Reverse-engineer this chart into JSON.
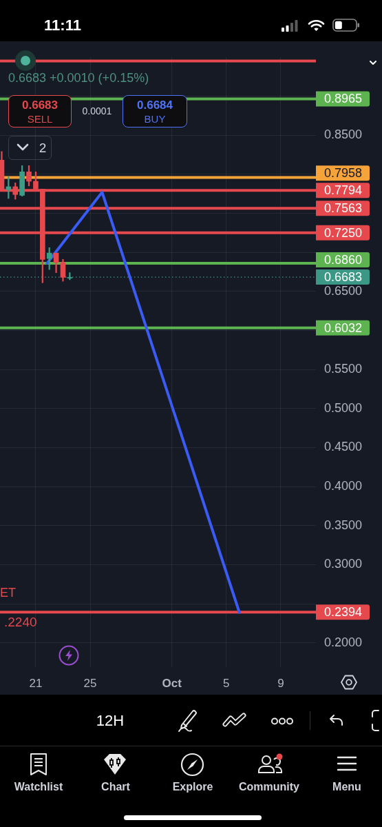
{
  "chart_data": {
    "type": "candlestick",
    "x": [
      "--09-18T12:00",
      "--09-19T00:00",
      "--09-19T12:00",
      "--09-20T00:00",
      "--09-20T12:00",
      "--09-21T00:00",
      "--09-21T12:00",
      "--09-22T00:00",
      "--09-22T12:00",
      "--09-23T00:00",
      "--09-23T12:00"
    ],
    "ohlc": [
      [
        0.818,
        0.829,
        0.779,
        0.779
      ],
      [
        0.78,
        0.797,
        0.769,
        0.784
      ],
      [
        0.784,
        0.789,
        0.768,
        0.774
      ],
      [
        0.773,
        0.811,
        0.772,
        0.803
      ],
      [
        0.803,
        0.811,
        0.785,
        0.791
      ],
      [
        0.791,
        0.803,
        0.781,
        0.781
      ],
      [
        0.781,
        0.781,
        0.661,
        0.691
      ],
      [
        0.692,
        0.706,
        0.678,
        0.699
      ],
      [
        0.699,
        0.699,
        0.674,
        0.687
      ],
      [
        0.687,
        0.691,
        0.663,
        0.668
      ],
      [
        0.667,
        0.674,
        0.665,
        0.668
      ]
    ],
    "colors": [
      "#e5484d",
      "#3c9d86",
      "#e5484d",
      "#3c9d86",
      "#e5484d",
      "#e5484d",
      "#e5484d",
      "#3c9d86",
      "#e5484d",
      "#e5484d",
      "#3c9d86"
    ],
    "series": [
      {
        "type": "line",
        "color": "#3a5cf5",
        "x": [
          "--09-21T20:00",
          "--09-25T21:00",
          "--10-05T23:00"
        ],
        "values": [
          0.686,
          0.777,
          0.239
        ]
      }
    ],
    "xlim": [
      "--09-18T09:00",
      "--10-11T14:00"
    ],
    "xticks": [
      {
        "value": "--09-21",
        "label": "21"
      },
      {
        "value": "--09-25",
        "label": "25"
      },
      {
        "value": "--10-01",
        "label": "Oct"
      },
      {
        "value": "--10-05",
        "label": "5"
      },
      {
        "value": "--10-09",
        "label": "9"
      }
    ],
    "ylim": [
      0.169,
      0.95
    ],
    "yticks": [
      {
        "value": 0.2,
        "label": "0.2000"
      },
      {
        "value": 0.25,
        "label": null
      },
      {
        "value": 0.3,
        "label": "0.3000"
      },
      {
        "value": 0.35,
        "label": "0.3500"
      },
      {
        "value": 0.4,
        "label": "0.4000"
      },
      {
        "value": 0.45,
        "label": "0.4500"
      },
      {
        "value": 0.5,
        "label": "0.5000"
      },
      {
        "value": 0.55,
        "label": "0.5500"
      },
      {
        "value": 0.6,
        "label": null
      },
      {
        "value": 0.65,
        "label": "0.6500"
      },
      {
        "value": 0.7,
        "label": null
      },
      {
        "value": 0.75,
        "label": null
      },
      {
        "value": 0.8,
        "label": null
      },
      {
        "value": 0.85,
        "label": "0.8500"
      },
      {
        "value": 0.9,
        "label": null
      }
    ],
    "ref_lines": [
      {
        "axis": "y",
        "value": 0.945,
        "color": "#e5484d"
      },
      {
        "axis": "y",
        "value": 0.8965,
        "label": "0.8965",
        "color": "#5db350"
      },
      {
        "axis": "y",
        "value": 0.7958,
        "label": "0.7958",
        "color": "#f6a33a"
      },
      {
        "axis": "y",
        "value": 0.7794,
        "label": "0.7794",
        "color": "#e5484d"
      },
      {
        "axis": "y",
        "value": 0.7563,
        "label": "0.7563",
        "color": "#e5484d"
      },
      {
        "axis": "y",
        "value": 0.725,
        "label": "0.7250",
        "color": "#e5484d"
      },
      {
        "axis": "y",
        "value": 0.686,
        "label": "0.6860",
        "color": "#5db350"
      },
      {
        "axis": "y",
        "value": 0.6683,
        "label": "0.6683",
        "color": "#3b9886",
        "line_style": "dotted"
      },
      {
        "axis": "y",
        "value": 0.6032,
        "label": "0.6032",
        "color": "#5db350"
      },
      {
        "axis": "y",
        "value": 0.2394,
        "label": "0.2394",
        "color": "#e5484d"
      }
    ],
    "grid": true,
    "annotations": [
      "11:11",
      "0.6683 +0.0010 (+0.15%)",
      "0.6683",
      "SELL",
      "0.0001",
      "0.6684",
      "BUY",
      "2",
      "ET",
      ".2240",
      "12H",
      "Watchlist",
      "Chart",
      "Explore",
      "Community",
      "Menu"
    ]
  }
}
